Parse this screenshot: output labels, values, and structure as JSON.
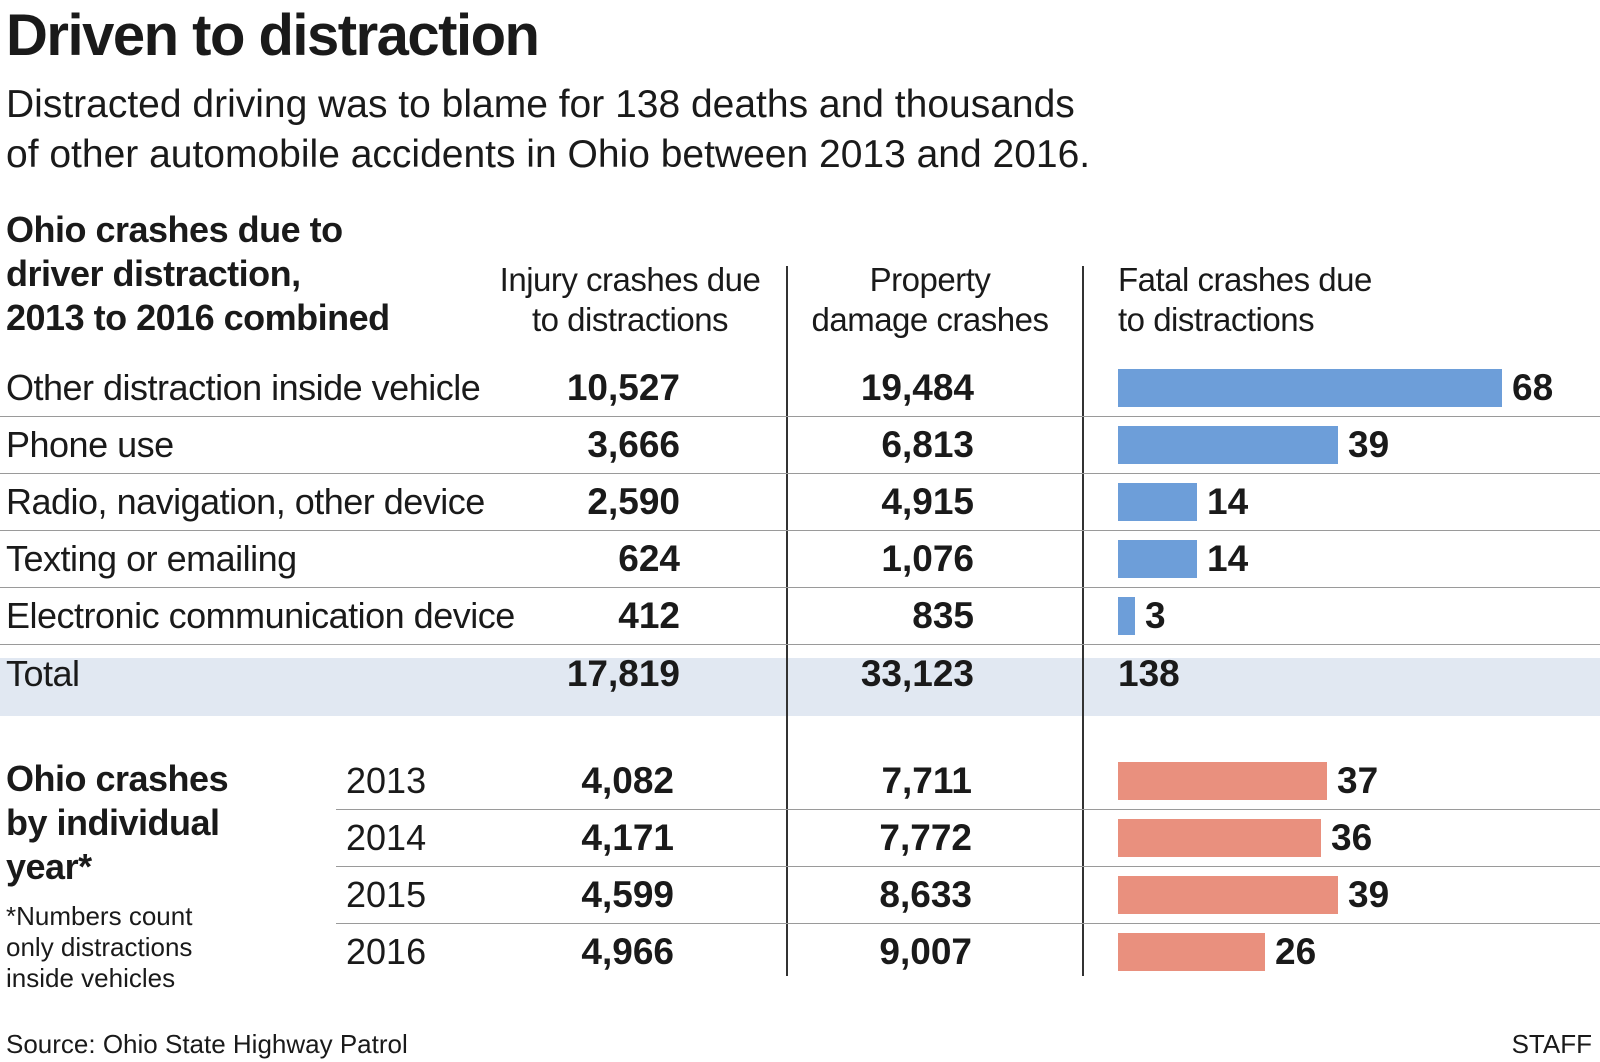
{
  "title": "Driven to distraction",
  "subtitle_lines": [
    "Distracted driving was to blame for 138 deaths and thousands",
    "of other automobile accidents in Ohio between 2013 and 2016."
  ],
  "combined_heading_lines": [
    "Ohio crashes due to",
    "driver distraction,",
    "2013 to 2016 combined"
  ],
  "column_headers": {
    "injury": [
      "Injury crashes due",
      "to distractions"
    ],
    "property": [
      "Property",
      "damage crashes"
    ],
    "fatal": [
      "Fatal crashes due",
      "to distractions"
    ]
  },
  "yearly_heading_lines": [
    "Ohio crashes",
    "by individual",
    "year*"
  ],
  "footnote_lines": [
    "*Numbers count",
    "only distractions",
    "inside vehicles"
  ],
  "source": "Source: Ohio State Highway Patrol",
  "credit": "STAFF",
  "colors": {
    "blue_bar": "#6d9ed9",
    "red_bar": "#e9907e",
    "total_background": "#e1e8f2"
  },
  "chart_data": [
    {
      "type": "table",
      "title": "Ohio crashes due to driver distraction, 2013 to 2016 combined",
      "columns": [
        "Injury crashes due to distractions",
        "Property damage crashes",
        "Fatal crashes due to distractions"
      ],
      "rows": [
        {
          "label": "Other distraction inside vehicle",
          "injury": "10,527",
          "property": "19,484",
          "fatal": 68
        },
        {
          "label": "Phone use",
          "injury": "3,666",
          "property": "6,813",
          "fatal": 39
        },
        {
          "label": "Radio, navigation, other device",
          "injury": "2,590",
          "property": "4,915",
          "fatal": 14
        },
        {
          "label": "Texting or emailing",
          "injury": "624",
          "property": "1,076",
          "fatal": 14
        },
        {
          "label": "Electronic communication device",
          "injury": "412",
          "property": "835",
          "fatal": 3
        }
      ],
      "total": {
        "label": "Total",
        "injury": "17,819",
        "property": "33,123",
        "fatal": "138"
      },
      "fatal_bar_max": 68
    },
    {
      "type": "table",
      "title": "Ohio crashes by individual year*",
      "rows": [
        {
          "year": "2013",
          "injury": "4,082",
          "property": "7,711",
          "fatal": 37
        },
        {
          "year": "2014",
          "injury": "4,171",
          "property": "7,772",
          "fatal": 36
        },
        {
          "year": "2015",
          "injury": "4,599",
          "property": "8,633",
          "fatal": 39
        },
        {
          "year": "2016",
          "injury": "4,966",
          "property": "9,007",
          "fatal": 26
        }
      ],
      "fatal_bar_max": 68
    }
  ]
}
